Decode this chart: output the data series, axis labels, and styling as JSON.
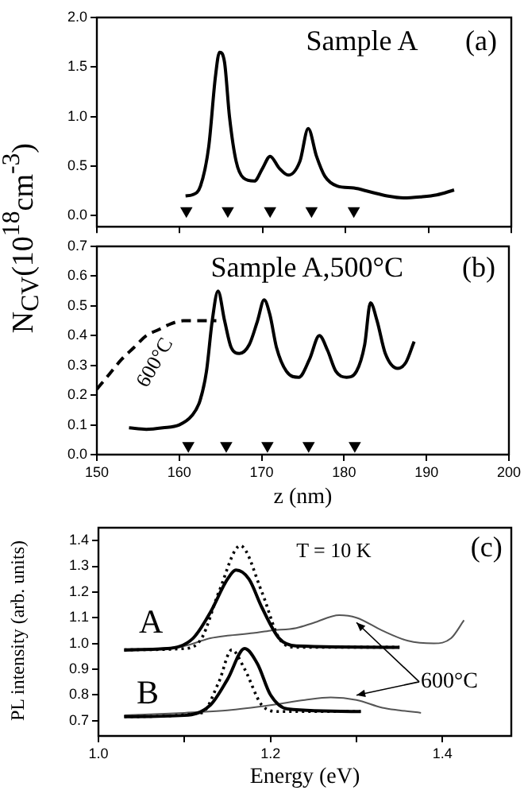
{
  "chart_data": [
    {
      "type": "line",
      "title": "Sample A",
      "annotations": [
        "(a)"
      ],
      "xlim": [
        150,
        200
      ],
      "xticks": [
        150,
        160,
        170,
        180,
        190,
        200
      ],
      "ylim": [
        -0.11,
        2.0
      ],
      "yticks": [
        {
          "value": 0,
          "label": "0.0"
        },
        0.5,
        {
          "value": 1,
          "label": "1.0"
        },
        1.5,
        {
          "value": 2,
          "label": "2.0"
        }
      ],
      "tick_labels": "y",
      "series": [
        {
          "color": "#000000",
          "x": [
            160.7,
            161.5,
            162.5,
            163.5,
            164.3,
            164.8,
            165.4,
            166,
            166.8,
            167.7,
            169,
            170,
            170.9,
            172,
            173.1,
            174.5,
            175.5,
            176.5,
            177.5,
            179,
            181,
            183,
            185,
            187,
            189,
            191,
            193.1
          ],
          "values": [
            0.2,
            0.21,
            0.3,
            0.7,
            1.4,
            1.65,
            1.55,
            1.0,
            0.55,
            0.38,
            0.35,
            0.48,
            0.6,
            0.48,
            0.41,
            0.55,
            0.88,
            0.6,
            0.4,
            0.3,
            0.28,
            0.24,
            0.2,
            0.18,
            0.19,
            0.21,
            0.26
          ]
        },
        {
          "type": "scatter",
          "marker": "triangle",
          "color": "#000000",
          "x": [
            160.8,
            165.8,
            170.9,
            175.9,
            181.0
          ],
          "values": [
            0.05,
            0.05,
            0.05,
            0.05,
            0.05
          ]
        }
      ]
    },
    {
      "type": "line",
      "title": "Sample A,500°C",
      "annotations": [
        "(b)",
        "600°C"
      ],
      "xlabel": "z (nm)",
      "ylabel": "N$_{CV}$(10$^{18}$cm$^{-3}$)",
      "xlim": [
        150,
        200
      ],
      "xticks": [
        150,
        160,
        170,
        180,
        190,
        200
      ],
      "ylim": [
        0,
        0.7
      ],
      "yticks": [
        {
          "value": 0,
          "label": "0.0"
        },
        0.1,
        0.2,
        0.3,
        0.4,
        0.5,
        0.6,
        0.7
      ],
      "series": [
        {
          "color": "#000000",
          "x": [
            153.9,
            156,
            158,
            160,
            161.5,
            162.5,
            163.3,
            164,
            164.7,
            165.5,
            166.3,
            167.3,
            168.5,
            169.5,
            170.3,
            171,
            171.8,
            173,
            174.5,
            175.8,
            177,
            178,
            179,
            180.3,
            181.5,
            182.5,
            183.2,
            184,
            185,
            186.5,
            187.5,
            188.5
          ],
          "values": [
            0.09,
            0.085,
            0.09,
            0.1,
            0.13,
            0.18,
            0.28,
            0.45,
            0.55,
            0.45,
            0.36,
            0.34,
            0.37,
            0.45,
            0.52,
            0.47,
            0.36,
            0.28,
            0.26,
            0.32,
            0.4,
            0.35,
            0.28,
            0.26,
            0.28,
            0.37,
            0.51,
            0.45,
            0.34,
            0.29,
            0.31,
            0.38
          ]
        },
        {
          "color": "#000000",
          "line_style": "dashed",
          "x": [
            150,
            151.5,
            153,
            154.5,
            156,
            157.5,
            159,
            160.5,
            162,
            163.5,
            164.5
          ],
          "values": [
            0.22,
            0.27,
            0.32,
            0.36,
            0.4,
            0.42,
            0.44,
            0.45,
            0.45,
            0.45,
            0.45
          ]
        },
        {
          "type": "scatter",
          "marker": "triangle",
          "color": "#000000",
          "x": [
            161.1,
            165.7,
            170.7,
            175.7,
            181.3
          ],
          "values": [
            0.03,
            0.03,
            0.03,
            0.03,
            0.03
          ]
        }
      ]
    },
    {
      "type": "line",
      "annotations": [
        "(c)",
        "T = 10 K",
        "A",
        "B",
        "600°C"
      ],
      "xlabel": "Energy (eV)",
      "ylabel": "PL intensity (arb. units)",
      "xlim": [
        1.0,
        1.48
      ],
      "xticks": [
        {
          "value": 1.0,
          "label": "1.0"
        },
        {
          "value": 1.1,
          "label": null
        },
        {
          "value": 1.2,
          "label": "1.2"
        },
        {
          "value": 1.3,
          "label": null
        },
        {
          "value": 1.4,
          "label": "1.4"
        }
      ],
      "ylim": [
        0.64,
        1.45
      ],
      "yticks": [
        0.7,
        0.8,
        0.9,
        {
          "value": 1.0,
          "label": "1.0"
        },
        1.1,
        1.2,
        1.3,
        1.4
      ],
      "series": [
        {
          "color": "#000000",
          "x": [
            1.03,
            1.08,
            1.11,
            1.13,
            1.15,
            1.16,
            1.175,
            1.19,
            1.21,
            1.23,
            1.35
          ],
          "values": [
            0.975,
            0.98,
            1.02,
            1.12,
            1.25,
            1.285,
            1.25,
            1.14,
            1.02,
            0.99,
            0.985
          ]
        },
        {
          "color": "#000000",
          "line_style": "dotted",
          "x": [
            1.03,
            1.1,
            1.12,
            1.14,
            1.165,
            1.19,
            1.21,
            1.23,
            1.35
          ],
          "values": [
            0.975,
            0.98,
            1.02,
            1.2,
            1.38,
            1.2,
            1.02,
            0.985,
            0.985
          ]
        },
        {
          "color": "#555555",
          "x": [
            1.03,
            1.07,
            1.1,
            1.13,
            1.15,
            1.18,
            1.2,
            1.23,
            1.25,
            1.28,
            1.3,
            1.33,
            1.36,
            1.39,
            1.41,
            1.425
          ],
          "values": [
            0.97,
            0.98,
            0.99,
            1.02,
            1.03,
            1.04,
            1.05,
            1.06,
            1.08,
            1.11,
            1.1,
            1.05,
            1.01,
            1.0,
            1.02,
            1.09
          ]
        },
        {
          "color": "#000000",
          "x": [
            1.03,
            1.1,
            1.13,
            1.15,
            1.17,
            1.185,
            1.2,
            1.22,
            1.305
          ],
          "values": [
            0.715,
            0.72,
            0.76,
            0.86,
            0.98,
            0.92,
            0.8,
            0.745,
            0.735
          ]
        },
        {
          "color": "#000000",
          "line_style": "dotted",
          "x": [
            1.03,
            1.12,
            1.14,
            1.155,
            1.17,
            1.19,
            1.21,
            1.305
          ],
          "values": [
            0.715,
            0.73,
            0.85,
            0.975,
            0.9,
            0.76,
            0.735,
            0.735
          ]
        },
        {
          "color": "#555555",
          "x": [
            1.03,
            1.1,
            1.15,
            1.2,
            1.24,
            1.27,
            1.3,
            1.33,
            1.35,
            1.375
          ],
          "values": [
            0.72,
            0.73,
            0.74,
            0.76,
            0.78,
            0.79,
            0.78,
            0.75,
            0.74,
            0.73
          ]
        }
      ]
    }
  ]
}
